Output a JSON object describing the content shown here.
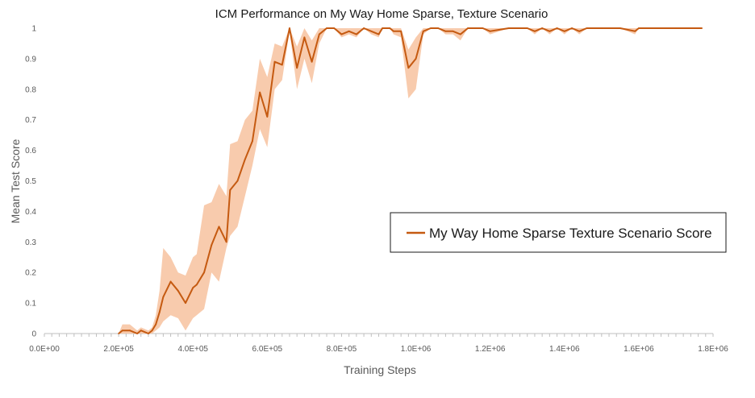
{
  "chart_data": {
    "type": "line",
    "title": "ICM Performance on My Way Home Sparse, Texture Scenario",
    "xlabel": "Training Steps",
    "ylabel": "Mean Test Score",
    "xlim": [
      0,
      1800000
    ],
    "ylim": [
      0,
      1
    ],
    "x_ticks": [
      0,
      200000,
      400000,
      600000,
      800000,
      1000000,
      1200000,
      1400000,
      1600000,
      1800000
    ],
    "x_tick_labels": [
      "0.0E+00",
      "2.0E+05",
      "4.0E+05",
      "6.0E+05",
      "8.0E+05",
      "1.0E+06",
      "1.2E+06",
      "1.4E+06",
      "1.6E+06",
      "1.8E+06"
    ],
    "y_ticks": [
      0,
      0.1,
      0.2,
      0.3,
      0.4,
      0.5,
      0.6,
      0.7,
      0.8,
      0.9,
      1
    ],
    "y_tick_labels": [
      "0",
      "0.1",
      "0.2",
      "0.3",
      "0.4",
      "0.5",
      "0.6",
      "0.7",
      "0.8",
      "0.9",
      "1"
    ],
    "grid": false,
    "legend_position": "right",
    "colors": {
      "line": "#c55a11",
      "band": "#f8cbad"
    },
    "series": [
      {
        "name": "My Way Home Sparse Texture Scenario Score",
        "x": [
          200000,
          210000,
          230000,
          250000,
          260000,
          280000,
          290000,
          300000,
          310000,
          320000,
          340000,
          360000,
          380000,
          400000,
          410000,
          430000,
          450000,
          470000,
          490000,
          500000,
          520000,
          540000,
          560000,
          580000,
          600000,
          620000,
          640000,
          660000,
          680000,
          700000,
          720000,
          740000,
          760000,
          780000,
          800000,
          820000,
          840000,
          860000,
          880000,
          900000,
          910000,
          920000,
          930000,
          940000,
          960000,
          980000,
          1000000,
          1020000,
          1040000,
          1060000,
          1080000,
          1100000,
          1120000,
          1140000,
          1160000,
          1180000,
          1200000,
          1250000,
          1300000,
          1320000,
          1340000,
          1360000,
          1380000,
          1400000,
          1420000,
          1440000,
          1460000,
          1500000,
          1550000,
          1590000,
          1600000,
          1610000,
          1650000,
          1700000,
          1750000,
          1770000
        ],
        "values": [
          0,
          0.01,
          0.01,
          0,
          0.01,
          0,
          0.01,
          0.03,
          0.07,
          0.12,
          0.17,
          0.14,
          0.1,
          0.15,
          0.16,
          0.2,
          0.29,
          0.35,
          0.3,
          0.47,
          0.5,
          0.57,
          0.63,
          0.79,
          0.71,
          0.89,
          0.88,
          1.0,
          0.87,
          0.97,
          0.89,
          0.98,
          1.0,
          1.0,
          0.98,
          0.99,
          0.98,
          1.0,
          0.99,
          0.98,
          1.0,
          1.0,
          1.0,
          0.99,
          0.99,
          0.87,
          0.9,
          0.99,
          1.0,
          1.0,
          0.99,
          0.99,
          0.98,
          1.0,
          1.0,
          1.0,
          0.99,
          1.0,
          1.0,
          0.99,
          1.0,
          0.99,
          1.0,
          0.99,
          1.0,
          0.99,
          1.0,
          1.0,
          1.0,
          0.99,
          1.0,
          1.0,
          1.0,
          1.0,
          1.0,
          1.0
        ],
        "lower": [
          0,
          0,
          0,
          0,
          0,
          0,
          0,
          0.01,
          0.02,
          0.04,
          0.06,
          0.05,
          0.01,
          0.05,
          0.06,
          0.08,
          0.2,
          0.17,
          0.28,
          0.32,
          0.35,
          0.45,
          0.55,
          0.67,
          0.61,
          0.8,
          0.83,
          0.99,
          0.8,
          0.9,
          0.82,
          0.95,
          1.0,
          1.0,
          0.97,
          0.98,
          0.97,
          1.0,
          0.98,
          0.97,
          1.0,
          1.0,
          1.0,
          0.98,
          0.97,
          0.77,
          0.8,
          0.98,
          1.0,
          1.0,
          0.98,
          0.98,
          0.96,
          1.0,
          1.0,
          1.0,
          0.98,
          1.0,
          1.0,
          0.98,
          1.0,
          0.98,
          1.0,
          0.98,
          1.0,
          0.98,
          1.0,
          1.0,
          1.0,
          0.98,
          1.0,
          1.0,
          1.0,
          1.0,
          1.0,
          1.0
        ],
        "upper": [
          0,
          0.03,
          0.03,
          0.01,
          0.02,
          0.01,
          0.02,
          0.06,
          0.14,
          0.28,
          0.25,
          0.2,
          0.19,
          0.25,
          0.26,
          0.42,
          0.43,
          0.49,
          0.45,
          0.62,
          0.63,
          0.7,
          0.73,
          0.9,
          0.84,
          0.95,
          0.94,
          1.0,
          0.94,
          1.0,
          0.96,
          1.0,
          1.0,
          1.0,
          1.0,
          1.0,
          1.0,
          1.0,
          1.0,
          1.0,
          1.0,
          1.0,
          1.0,
          1.0,
          1.0,
          0.93,
          0.97,
          1.0,
          1.0,
          1.0,
          1.0,
          1.0,
          1.0,
          1.0,
          1.0,
          1.0,
          1.0,
          1.0,
          1.0,
          1.0,
          1.0,
          1.0,
          1.0,
          1.0,
          1.0,
          1.0,
          1.0,
          1.0,
          1.0,
          1.0,
          1.0,
          1.0,
          1.0,
          1.0,
          1.0,
          1.0
        ]
      }
    ]
  }
}
